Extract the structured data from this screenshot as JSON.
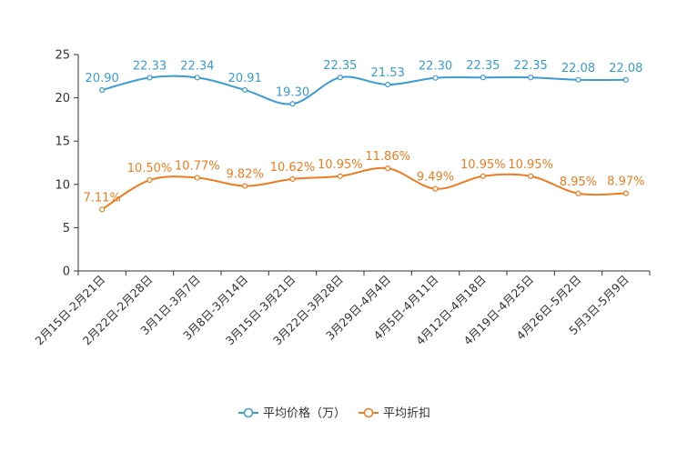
{
  "chart_data": {
    "type": "line",
    "title": "",
    "xlabel": "",
    "ylabel": "",
    "ylim": [
      0,
      25
    ],
    "yticks": [
      0,
      5,
      10,
      15,
      20,
      25
    ],
    "grid": false,
    "legend_position": "bottom-center",
    "categories": [
      "2月15日-2月21日",
      "2月22日-2月28日",
      "3月1日-3月7日",
      "3月8日-3月14日",
      "3月15日-3月21日",
      "3月22日-3月28日",
      "3月29日-4月4日",
      "4月5日-4月11日",
      "4月12日-4月18日",
      "4月19日-4月25日",
      "4月26日-5月2日",
      "5月3日-5月9日"
    ],
    "series": [
      {
        "name": "平均价格（万）",
        "color": "#3a9bd5",
        "values": [
          20.9,
          22.33,
          22.34,
          20.91,
          19.3,
          22.35,
          21.53,
          22.3,
          22.35,
          22.35,
          22.08,
          22.08
        ],
        "labels": [
          "20.90",
          "22.33",
          "22.34",
          "20.91",
          "19.30",
          "22.35",
          "21.53",
          "22.30",
          "22.35",
          "22.35",
          "22.08",
          "22.08"
        ]
      },
      {
        "name": "平均折扣",
        "color": "#f07b1f",
        "values": [
          7.11,
          10.5,
          10.77,
          9.82,
          10.62,
          10.95,
          11.86,
          9.49,
          10.95,
          10.95,
          8.95,
          8.97
        ],
        "labels": [
          "7.11%",
          "10.50%",
          "10.77%",
          "9.82%",
          "10.62%",
          "10.95%",
          "11.86%",
          "9.49%",
          "10.95%",
          "10.95%",
          "8.95%",
          "8.97%"
        ]
      }
    ]
  }
}
